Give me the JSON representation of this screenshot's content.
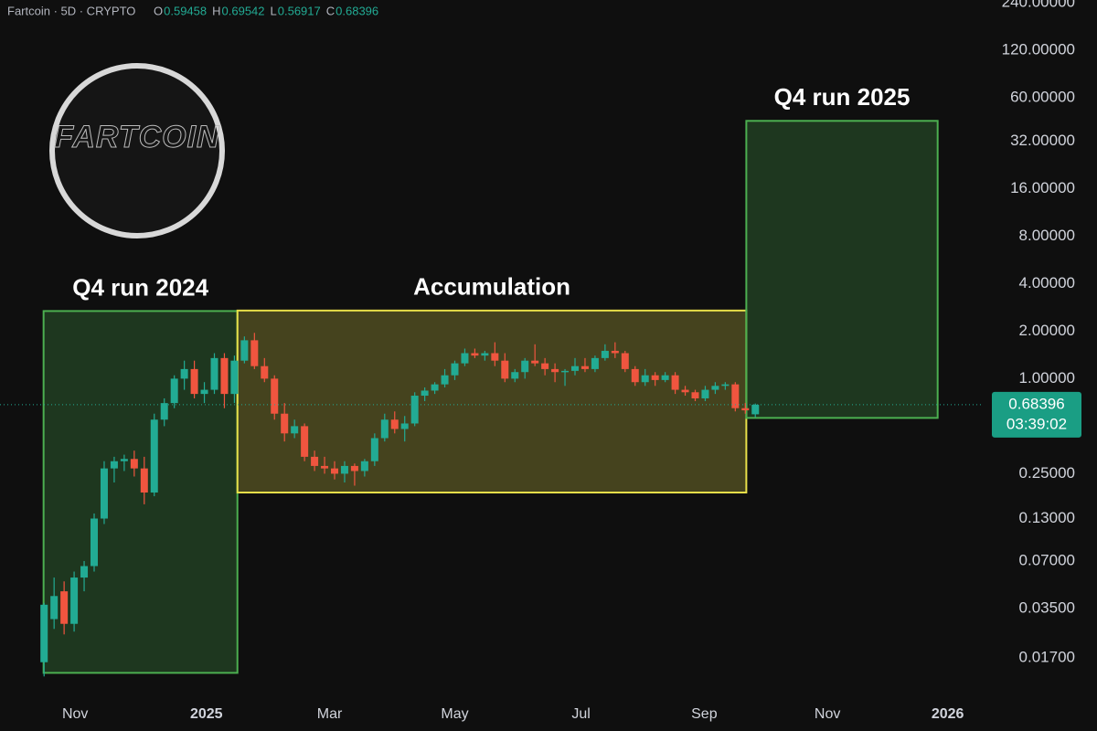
{
  "chart_data": {
    "type": "candlestick",
    "symbol": "Fartcoin · 5D · CRYPTO",
    "ohlc_labels": [
      "O",
      "H",
      "L",
      "C"
    ],
    "categories": [
      null,
      null,
      null,
      null,
      null,
      null,
      null,
      null,
      null,
      null,
      null,
      null,
      null,
      null,
      null,
      null,
      null,
      null,
      null,
      null,
      null,
      null,
      null,
      null,
      null,
      null,
      null,
      null,
      null,
      null,
      null,
      null,
      null,
      null,
      null,
      null,
      null,
      null,
      null,
      null,
      null,
      null,
      null,
      null,
      null,
      null,
      null,
      null,
      null,
      null,
      null,
      null,
      null,
      null,
      null,
      null,
      null,
      null,
      null,
      null,
      null,
      null,
      null,
      null,
      null,
      null,
      null,
      null,
      null,
      null,
      null,
      null
    ],
    "open": [
      0.016,
      0.03,
      0.045,
      0.028,
      0.055,
      0.065,
      0.13,
      0.27,
      0.3,
      0.31,
      0.27,
      0.19,
      0.55,
      0.7,
      1.0,
      1.15,
      0.8,
      0.85,
      1.35,
      0.8,
      1.3,
      1.75,
      1.2,
      1.0,
      0.6,
      0.45,
      0.5,
      0.32,
      0.28,
      0.27,
      0.25,
      0.28,
      0.26,
      0.3,
      0.42,
      0.55,
      0.48,
      0.52,
      0.78,
      0.84,
      0.92,
      1.05,
      1.25,
      1.45,
      1.4,
      1.45,
      1.3,
      1.0,
      1.1,
      1.3,
      1.25,
      1.15,
      1.1,
      1.12,
      1.2,
      1.15,
      1.35,
      1.5,
      1.45,
      1.15,
      0.95,
      1.05,
      0.98,
      1.05,
      0.85,
      0.82,
      0.75,
      0.85,
      0.9,
      0.92,
      0.65,
      0.59458
    ],
    "high": [
      0.038,
      0.055,
      0.052,
      0.06,
      0.07,
      0.14,
      0.3,
      0.32,
      0.33,
      0.35,
      0.32,
      0.6,
      0.75,
      1.05,
      1.3,
      1.3,
      0.95,
      1.45,
      1.45,
      1.4,
      1.85,
      1.95,
      1.35,
      1.05,
      0.7,
      0.55,
      0.52,
      0.35,
      0.32,
      0.3,
      0.3,
      0.29,
      0.31,
      0.45,
      0.6,
      0.62,
      0.58,
      0.82,
      0.88,
      0.95,
      1.15,
      1.3,
      1.55,
      1.55,
      1.5,
      1.7,
      1.45,
      1.15,
      1.35,
      1.65,
      1.35,
      1.25,
      1.15,
      1.35,
      1.35,
      1.4,
      1.65,
      1.7,
      1.5,
      1.2,
      1.15,
      1.1,
      1.1,
      1.1,
      0.9,
      0.85,
      0.9,
      0.95,
      0.95,
      0.95,
      0.7,
      0.69542
    ],
    "low": [
      0.013,
      0.026,
      0.024,
      0.025,
      0.045,
      0.06,
      0.12,
      0.22,
      0.26,
      0.24,
      0.16,
      0.18,
      0.5,
      0.65,
      0.85,
      0.75,
      0.7,
      0.8,
      0.65,
      0.7,
      1.25,
      1.15,
      0.95,
      0.55,
      0.4,
      0.42,
      0.3,
      0.26,
      0.25,
      0.23,
      0.22,
      0.21,
      0.24,
      0.28,
      0.4,
      0.45,
      0.4,
      0.5,
      0.72,
      0.8,
      0.88,
      0.98,
      1.2,
      1.35,
      1.3,
      1.2,
      0.95,
      0.95,
      1.0,
      1.2,
      1.05,
      0.95,
      0.9,
      1.05,
      1.1,
      1.1,
      1.3,
      1.35,
      1.1,
      0.9,
      0.9,
      0.9,
      0.95,
      0.8,
      0.78,
      0.72,
      0.72,
      0.8,
      0.85,
      0.62,
      0.6,
      0.56917
    ],
    "close": [
      0.037,
      0.042,
      0.028,
      0.055,
      0.065,
      0.13,
      0.27,
      0.3,
      0.31,
      0.27,
      0.19,
      0.55,
      0.7,
      1.0,
      1.15,
      0.8,
      0.85,
      1.35,
      0.8,
      1.3,
      1.75,
      1.2,
      1.0,
      0.6,
      0.45,
      0.5,
      0.32,
      0.28,
      0.27,
      0.25,
      0.28,
      0.26,
      0.3,
      0.42,
      0.55,
      0.48,
      0.52,
      0.78,
      0.84,
      0.92,
      1.05,
      1.25,
      1.45,
      1.4,
      1.45,
      1.3,
      1.0,
      1.1,
      1.3,
      1.25,
      1.15,
      1.1,
      1.12,
      1.2,
      1.15,
      1.35,
      1.5,
      1.45,
      1.15,
      0.95,
      1.05,
      0.98,
      1.05,
      0.85,
      0.82,
      0.75,
      0.85,
      0.9,
      0.92,
      0.65,
      0.63,
      0.68396
    ],
    "up_color": "#22ab94",
    "down_color": "#f0553f",
    "log_scale": true,
    "ylim": [
      0.01,
      250
    ],
    "yticks": [
      {
        "value": 240,
        "label": "240.00000"
      },
      {
        "value": 120,
        "label": "120.00000"
      },
      {
        "value": 60,
        "label": "60.00000"
      },
      {
        "value": 32,
        "label": "32.00000"
      },
      {
        "value": 16,
        "label": "16.00000"
      },
      {
        "value": 8,
        "label": "8.00000"
      },
      {
        "value": 4,
        "label": "4.00000"
      },
      {
        "value": 2,
        "label": "2.00000"
      },
      {
        "value": 1,
        "label": "1.00000"
      },
      {
        "value": 0.25,
        "label": "0.25000"
      },
      {
        "value": 0.13,
        "label": "0.13000"
      },
      {
        "value": 0.07,
        "label": "0.07000"
      },
      {
        "value": 0.035,
        "label": "0.03500"
      },
      {
        "value": 0.017,
        "label": "0.01700"
      }
    ],
    "xlim": [
      -4.4,
      93.7
    ],
    "xticks": [
      {
        "value": 3.1,
        "label": "Nov"
      },
      {
        "value": 16.2,
        "label": "2025"
      },
      {
        "value": 28.5,
        "label": "Mar"
      },
      {
        "value": 41.0,
        "label": "May"
      },
      {
        "value": 53.6,
        "label": "Jul"
      },
      {
        "value": 65.9,
        "label": "Sep"
      },
      {
        "value": 78.2,
        "label": "Nov"
      },
      {
        "value": 90.2,
        "label": "2026"
      }
    ],
    "annotations": [
      {
        "label": "Q4 run 2024",
        "x": [
          -0.05,
          19.3
        ],
        "y": [
          0.0137,
          2.68
        ],
        "color": "#4caf50"
      },
      {
        "label": "Accumulation",
        "x": [
          19.3,
          70.1
        ],
        "y": [
          0.19,
          2.7
        ],
        "color": "#e8e04a"
      },
      {
        "label": "Q4 run 2025",
        "x": [
          70.1,
          89.2
        ],
        "y": [
          0.564,
          42.9
        ],
        "color": "#4caf50"
      }
    ],
    "last_price_countdown": "03:39:02",
    "logo_text": "FARTCOIN"
  }
}
